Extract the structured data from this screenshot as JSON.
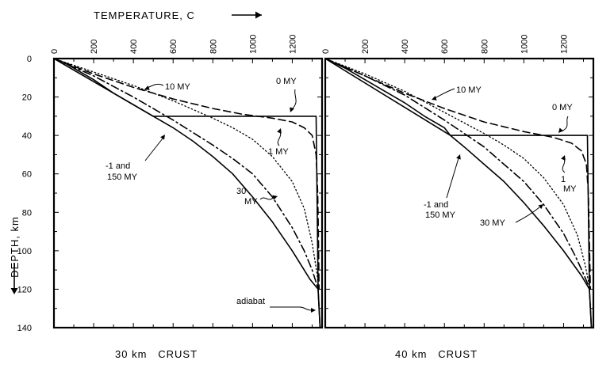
{
  "figure": {
    "x_axis_title": "TEMPERATURE, C",
    "y_axis_title": "DEPTH, km"
  },
  "chart_data": [
    {
      "type": "line",
      "caption": "30 km   CRUST",
      "xlabel": "TEMPERATURE, C",
      "ylabel": "DEPTH, km",
      "xlim": [
        0,
        1350
      ],
      "ylim": [
        140,
        0
      ],
      "x_ticks": [
        0,
        200,
        400,
        600,
        800,
        1000,
        1200
      ],
      "y_ticks": [
        0,
        20,
        40,
        60,
        80,
        100,
        120,
        140
      ],
      "grid": false,
      "series": [
        {
          "name": "-1 and 150 MY",
          "style": "solid",
          "points": [
            [
              0,
              0
            ],
            [
              50,
              2
            ],
            [
              100,
              5
            ],
            [
              200,
              11
            ],
            [
              300,
              18
            ],
            [
              400,
              24
            ],
            [
              500,
              30
            ],
            [
              600,
              36
            ],
            [
              700,
              43
            ],
            [
              800,
              51
            ],
            [
              900,
              60
            ],
            [
              1000,
              72
            ],
            [
              1100,
              85
            ],
            [
              1200,
              100
            ],
            [
              1290,
              115
            ],
            [
              1330,
              120
            ]
          ]
        },
        {
          "name": "0 MY",
          "style": "solid",
          "points": [
            [
              0,
              0
            ],
            [
              500,
              30
            ],
            [
              1320,
              30
            ],
            [
              1330,
              120
            ],
            [
              1340,
              140
            ]
          ]
        },
        {
          "name": "1 MY",
          "style": "dashed",
          "points": [
            [
              0,
              0
            ],
            [
              200,
              8
            ],
            [
              400,
              15
            ],
            [
              600,
              21
            ],
            [
              800,
              26
            ],
            [
              950,
              29
            ],
            [
              1100,
              31
            ],
            [
              1200,
              33
            ],
            [
              1260,
              36
            ],
            [
              1300,
              40
            ],
            [
              1320,
              50
            ],
            [
              1328,
              70
            ],
            [
              1332,
              95
            ],
            [
              1335,
              120
            ]
          ]
        },
        {
          "name": "10 MY",
          "style": "dotted",
          "points": [
            [
              0,
              0
            ],
            [
              200,
              7
            ],
            [
              400,
              14
            ],
            [
              600,
              22
            ],
            [
              800,
              31
            ],
            [
              900,
              36
            ],
            [
              1000,
              42
            ],
            [
              1100,
              51
            ],
            [
              1200,
              64
            ],
            [
              1260,
              78
            ],
            [
              1300,
              96
            ],
            [
              1325,
              112
            ],
            [
              1333,
              120
            ]
          ]
        },
        {
          "name": "30 MY",
          "style": "dashdot",
          "points": [
            [
              0,
              0
            ],
            [
              200,
              9
            ],
            [
              400,
              20
            ],
            [
              600,
              32
            ],
            [
              800,
              45
            ],
            [
              900,
              52
            ],
            [
              1000,
              60
            ],
            [
              1100,
              72
            ],
            [
              1200,
              88
            ],
            [
              1260,
              100
            ],
            [
              1300,
              110
            ],
            [
              1325,
              118
            ],
            [
              1333,
              120
            ]
          ]
        },
        {
          "name": "adiabat",
          "style": "solid",
          "points": [
            [
              1330,
              120
            ],
            [
              1340,
              140
            ]
          ]
        }
      ],
      "annotations": [
        "10 MY",
        "0 MY",
        "1 MY",
        "-1 and",
        "150 MY",
        "30",
        "MY",
        "adiabat"
      ]
    },
    {
      "type": "line",
      "caption": "40 km   CRUST",
      "xlabel": "TEMPERATURE, C",
      "ylabel": "DEPTH, km",
      "xlim": [
        0,
        1350
      ],
      "ylim": [
        140,
        0
      ],
      "x_ticks": [
        0,
        200,
        400,
        600,
        800,
        1000,
        1200
      ],
      "y_ticks": [
        0,
        20,
        40,
        60,
        80,
        100,
        120,
        140
      ],
      "grid": false,
      "series": [
        {
          "name": "-1 and 150 MY",
          "style": "solid",
          "points": [
            [
              0,
              0
            ],
            [
              100,
              5
            ],
            [
              200,
              11
            ],
            [
              300,
              17
            ],
            [
              400,
              23
            ],
            [
              500,
              30
            ],
            [
              600,
              36
            ],
            [
              630,
              40
            ],
            [
              700,
              46
            ],
            [
              800,
              55
            ],
            [
              900,
              64
            ],
            [
              1000,
              75
            ],
            [
              1100,
              87
            ],
            [
              1200,
              100
            ],
            [
              1290,
              113
            ],
            [
              1330,
              120
            ]
          ]
        },
        {
          "name": "0 MY",
          "style": "solid",
          "points": [
            [
              0,
              0
            ],
            [
              630,
              40
            ],
            [
              1320,
              40
            ],
            [
              1330,
              120
            ],
            [
              1340,
              140
            ]
          ]
        },
        {
          "name": "1 MY",
          "style": "dashed",
          "points": [
            [
              0,
              0
            ],
            [
              200,
              9
            ],
            [
              400,
              18
            ],
            [
              600,
              26
            ],
            [
              800,
              33
            ],
            [
              1000,
              38
            ],
            [
              1150,
              41
            ],
            [
              1240,
              44
            ],
            [
              1290,
              48
            ],
            [
              1315,
              55
            ],
            [
              1325,
              70
            ],
            [
              1330,
              95
            ],
            [
              1335,
              120
            ]
          ]
        },
        {
          "name": "10 MY",
          "style": "dotted",
          "points": [
            [
              0,
              0
            ],
            [
              200,
              8
            ],
            [
              400,
              17
            ],
            [
              600,
              28
            ],
            [
              800,
              39
            ],
            [
              900,
              45
            ],
            [
              1000,
              52
            ],
            [
              1100,
              62
            ],
            [
              1200,
              76
            ],
            [
              1270,
              92
            ],
            [
              1310,
              108
            ],
            [
              1333,
              120
            ]
          ]
        },
        {
          "name": "30 MY",
          "style": "dashdot",
          "points": [
            [
              0,
              0
            ],
            [
              200,
              9
            ],
            [
              400,
              19
            ],
            [
              600,
              32
            ],
            [
              800,
              46
            ],
            [
              900,
              55
            ],
            [
              1000,
              64
            ],
            [
              1100,
              76
            ],
            [
              1200,
              91
            ],
            [
              1260,
              103
            ],
            [
              1300,
              112
            ],
            [
              1333,
              120
            ]
          ]
        },
        {
          "name": "adiabat",
          "style": "solid",
          "points": [
            [
              1330,
              120
            ],
            [
              1340,
              140
            ]
          ]
        }
      ],
      "annotations": [
        "10 MY",
        "0 MY",
        "1",
        "MY",
        "-1 and",
        "150 MY",
        "30 MY"
      ]
    }
  ]
}
